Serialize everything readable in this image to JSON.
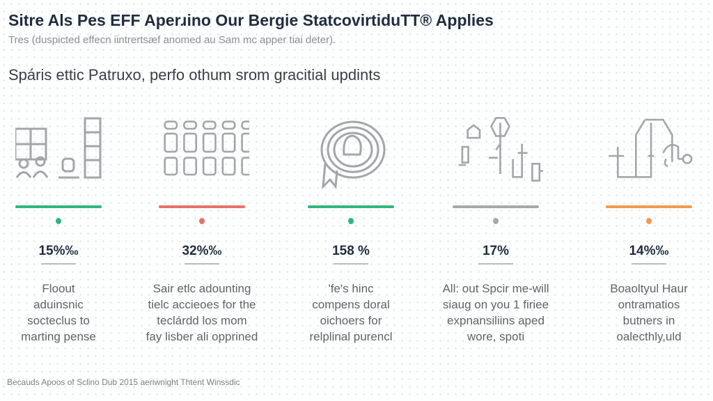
{
  "header": {
    "title": "Sitre Als Pes EFF Aperɹino Our Bergie StatcovirtiduTT® Applies",
    "subtitle": "Tres (duspicted effecn iintrertsæf anomed au Sam mc apper tiai deter).",
    "heading": "Spáris ettic Patruxo, perfo othum srom gracitial updints"
  },
  "colors": {
    "green": "#2db87d",
    "red": "#e8706a",
    "gray": "#a8a8a8",
    "orange": "#f39a4c",
    "title": "#1f2d3f"
  },
  "stats": [
    {
      "icon": "people-grid-icon",
      "color": "#2db87d",
      "value": "15%‰",
      "desc": [
        "Floout",
        "aduinsnic",
        "socteclus to",
        "marting pense"
      ]
    },
    {
      "icon": "seat-grid-icon",
      "color": "#e8706a",
      "value": "32%‰",
      "desc": [
        "Sair etlc adounting",
        "tielc accieoes for the",
        "teclárdd los mom",
        "fay lisber ali opprined"
      ]
    },
    {
      "icon": "award-ribbon-icon",
      "color": "#2db87d",
      "value": "158 %",
      "desc": [
        "'fe's hinc",
        "compens doral",
        "oichoers for",
        "relplinal purencl"
      ]
    },
    {
      "icon": "network-diagram-icon",
      "color": "#a8a8a8",
      "value": "17%",
      "desc": [
        "All: out Spcir me-will",
        "siaug on you 1 firiee",
        "expnansiliins aped",
        "wore, spoti"
      ]
    },
    {
      "icon": "house-circuit-icon",
      "color": "#f39a4c",
      "value": "14%‰",
      "desc": [
        "Boaoltyul Haur",
        "ontramatios",
        "butners in",
        "oalecthly,uld"
      ]
    }
  ],
  "footer": "Becauds Apoos of Sclino Dub 2015 aeriwnight Thtent Winssdic"
}
